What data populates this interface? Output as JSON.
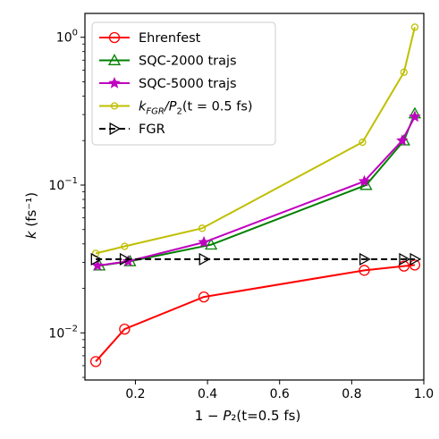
{
  "chart_data": {
    "type": "line",
    "xlabel": "1 − P₂(t=0.5 fs)",
    "ylabel": "k (fs⁻¹)",
    "xlim": [
      0.06,
      1.0
    ],
    "ylim": [
      0.0048,
      1.45
    ],
    "yscale": "log",
    "grid": false,
    "legend_position": "top-left",
    "x_ticks": [
      {
        "value": 0.2,
        "label": "0.2"
      },
      {
        "value": 0.4,
        "label": "0.4"
      },
      {
        "value": 0.6,
        "label": "0.6"
      },
      {
        "value": 0.8,
        "label": "0.8"
      },
      {
        "value": 1.0,
        "label": "1.0"
      }
    ],
    "y_ticks": [
      {
        "value": 0.01,
        "mant": "10",
        "exp": "−2"
      },
      {
        "value": 0.1,
        "mant": "10",
        "exp": "−1"
      },
      {
        "value": 1,
        "mant": "10",
        "exp": "0"
      }
    ],
    "series": [
      {
        "name": "Ehrenfest",
        "color": "#ff0000",
        "marker": "circle",
        "dashed": false,
        "markerSize": 5.5,
        "x": [
          0.09,
          0.17,
          0.39,
          0.835,
          0.945,
          0.975
        ],
        "y": [
          0.0064,
          0.0106,
          0.0175,
          0.0265,
          0.0283,
          0.0288
        ]
      },
      {
        "name": "SQC-2000 trajs",
        "color": "#008000",
        "marker": "triangle-up",
        "dashed": false,
        "markerSize": 6,
        "x": [
          0.1,
          0.185,
          0.41,
          0.84,
          0.945,
          0.975
        ],
        "y": [
          0.0285,
          0.0305,
          0.0395,
          0.1,
          0.2,
          0.305
        ]
      },
      {
        "name": "SQC-5000 trajs",
        "color": "#bf00bf",
        "marker": "star",
        "dashed": false,
        "markerSize": 5,
        "x": [
          0.095,
          0.18,
          0.39,
          0.835,
          0.94,
          0.975
        ],
        "y": [
          0.0285,
          0.0305,
          0.041,
          0.106,
          0.2,
          0.29
        ]
      },
      {
        "name": "k_FGR/P₂(t = 0.5 fs)",
        "color": "#bfbf00",
        "marker": "circle-small",
        "dashed": false,
        "markerSize": 3.5,
        "x": [
          0.09,
          0.17,
          0.385,
          0.83,
          0.945,
          0.975
        ],
        "y": [
          0.0345,
          0.0385,
          0.051,
          0.195,
          0.58,
          1.17
        ]
      },
      {
        "name": "FGR",
        "color": "#000000",
        "marker": "triangle-right",
        "dashed": true,
        "markerSize": 6,
        "x": [
          0.09,
          0.17,
          0.39,
          0.835,
          0.945,
          0.975
        ],
        "y": [
          0.0315,
          0.0315,
          0.0315,
          0.0315,
          0.0315,
          0.0315
        ]
      }
    ],
    "legend_labels": [
      {
        "main": "Ehrenfest"
      },
      {
        "main": "SQC-2000 trajs"
      },
      {
        "main": "SQC-5000 trajs"
      },
      {
        "k": "k",
        "sub": "FGR",
        "rest": "/P",
        "sub2": "2",
        "tail": "(t = 0.5 fs)"
      },
      {
        "main": "FGR"
      }
    ]
  }
}
